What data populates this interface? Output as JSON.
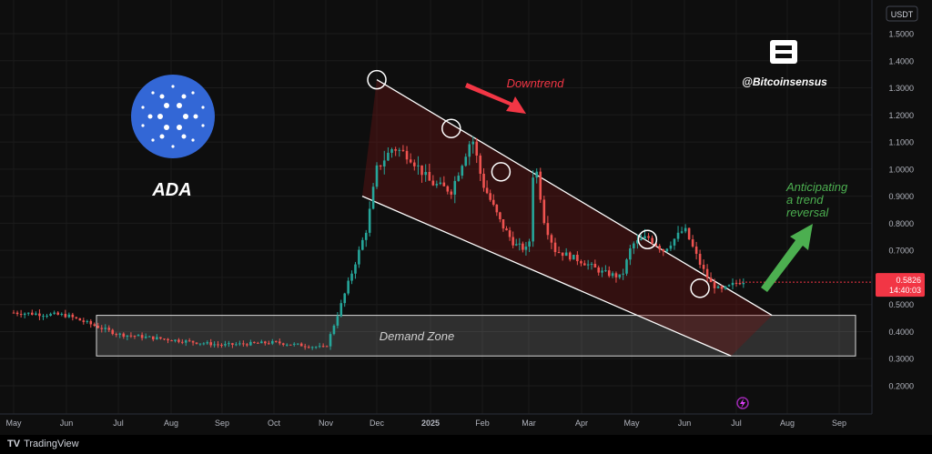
{
  "chart_data": {
    "type": "candlestick",
    "title": "ADA",
    "quote_currency": "USDT",
    "ylim": [
      0.15,
      1.55
    ],
    "y_ticks": [
      "1.5000",
      "1.4000",
      "1.3000",
      "1.2000",
      "1.1000",
      "1.0000",
      "0.9000",
      "0.8000",
      "0.7000",
      "0.6000",
      "0.5000",
      "0.4000",
      "0.3000",
      "0.2000"
    ],
    "x_ticks": [
      "May",
      "Jun",
      "Jul",
      "Aug",
      "Sep",
      "Oct",
      "Nov",
      "Dec",
      "2025",
      "Feb",
      "Mar",
      "Apr",
      "May",
      "Jun",
      "Jul",
      "Aug",
      "Sep"
    ],
    "current_price": "0.5826",
    "countdown": "14:40:03",
    "price_path_months": [
      0,
      1,
      2,
      3,
      4,
      5,
      6,
      6.3,
      6.8,
      7,
      7.3,
      7.6,
      8,
      8.4,
      8.8,
      9,
      9.4,
      9.7,
      10,
      10.1,
      10.3,
      10.5,
      11,
      11.4,
      11.8,
      12,
      12.3,
      12.6,
      13,
      13.3,
      13.5,
      13.7,
      14,
      14.2
    ],
    "price_path_values": [
      0.47,
      0.46,
      0.39,
      0.37,
      0.35,
      0.36,
      0.34,
      0.5,
      0.78,
      1.0,
      1.08,
      1.05,
      0.95,
      0.92,
      1.12,
      0.95,
      0.8,
      0.72,
      0.7,
      1.05,
      0.8,
      0.7,
      0.66,
      0.62,
      0.6,
      0.72,
      0.75,
      0.7,
      0.78,
      0.65,
      0.58,
      0.55,
      0.58,
      0.59
    ],
    "annotations": {
      "downtrend": "Downtrend",
      "reversal": [
        "Anticipating",
        "a trend",
        "reversal"
      ],
      "demand_zone": "Demand Zone",
      "watermark": "@Bitcoinsensus"
    },
    "demand_zone_range": [
      0.31,
      0.46
    ],
    "channel_upper": {
      "months": [
        7,
        14.7
      ],
      "values": [
        1.33,
        0.46
      ]
    },
    "channel_lower": {
      "months": [
        7,
        13.9
      ],
      "values": [
        0.9,
        0.31
      ]
    },
    "touch_circles": {
      "months": [
        7,
        8.4,
        9.4,
        12.3,
        13.3
      ],
      "values": [
        1.33,
        1.15,
        0.99,
        0.74,
        0.56
      ]
    },
    "colors": {
      "up": "#26a69a",
      "down": "#ef5350",
      "downtrend_text": "#f23645",
      "reversal_text": "#4caf50",
      "price_tag": "#f23645",
      "cardano": "#3367d6"
    }
  },
  "footer": {
    "brand": "TradingView"
  }
}
